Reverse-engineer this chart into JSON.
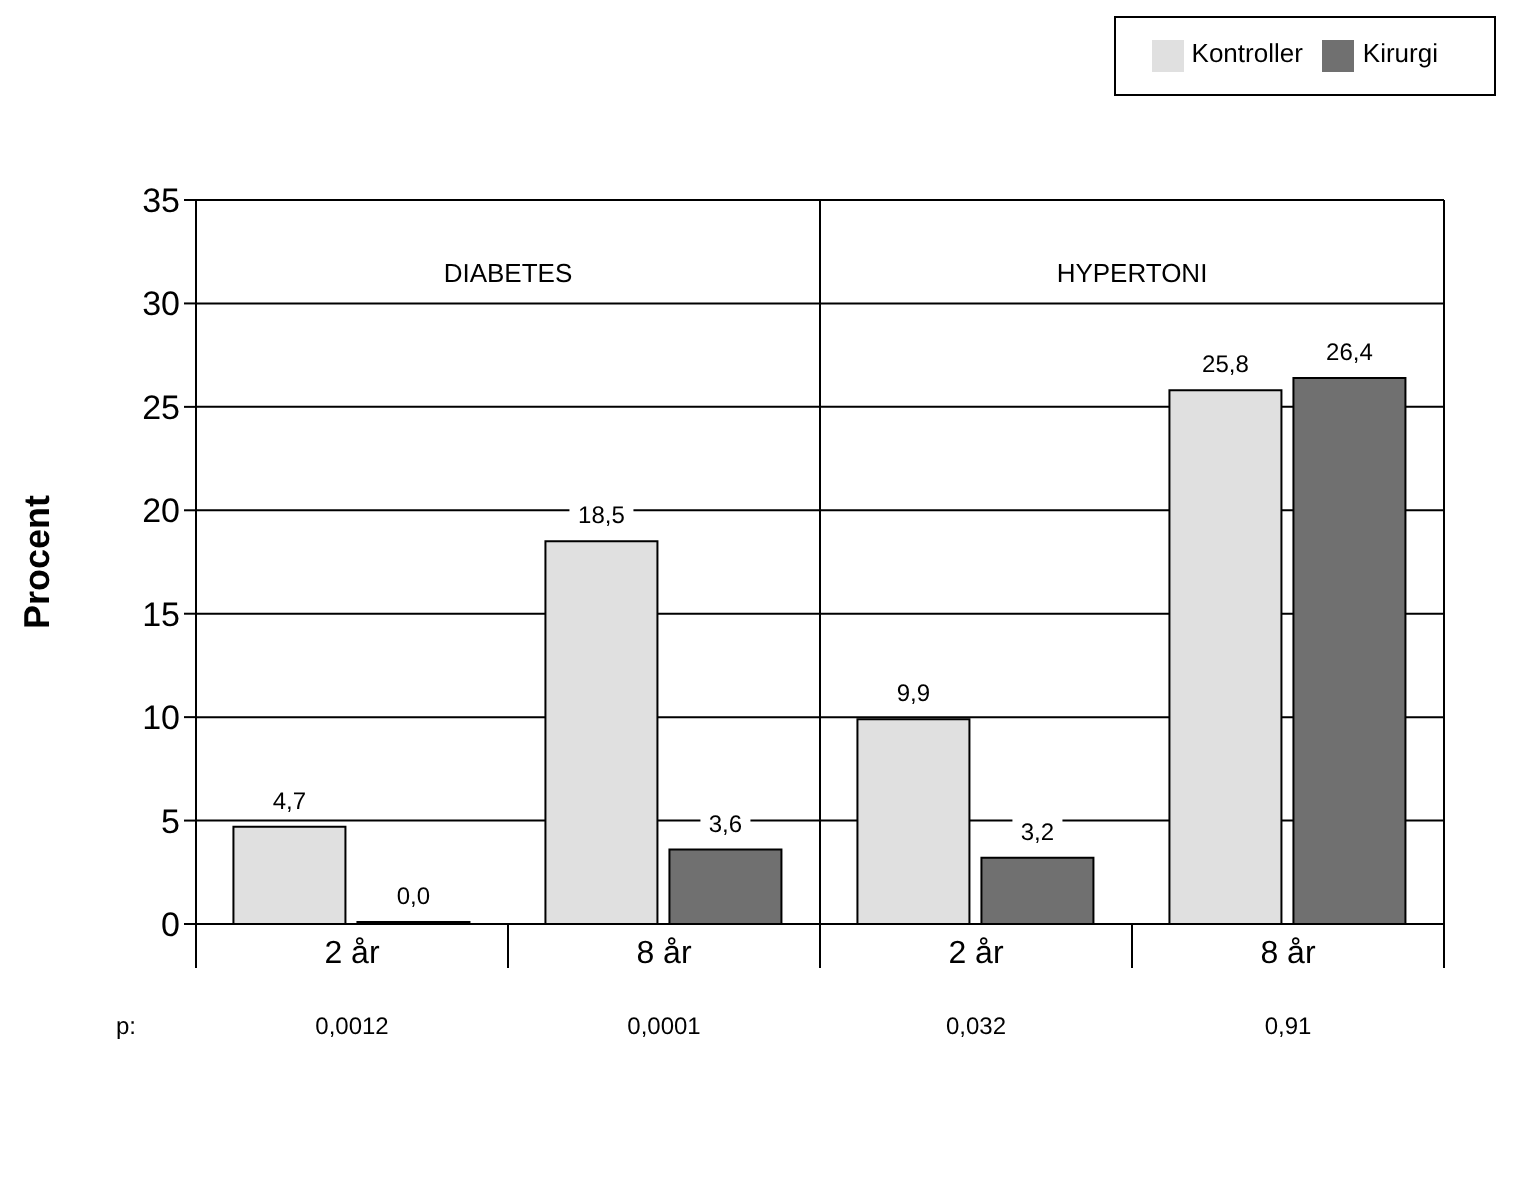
{
  "chart_data": {
    "type": "bar",
    "ylabel": "Procent",
    "categories": [
      "2 år",
      "8 år",
      "2 år",
      "8 år"
    ],
    "series": [
      {
        "name": "Kontroller",
        "color": "#e0e0e0",
        "values": [
          4.7,
          18.5,
          9.9,
          25.8
        ],
        "value_labels": [
          "4,7",
          "18,5",
          "9,9",
          "25,8"
        ]
      },
      {
        "name": "Kirurgi",
        "color": "#707070",
        "values": [
          0.0,
          3.6,
          3.2,
          26.4
        ],
        "value_labels": [
          "0,0",
          "3,6",
          "3,2",
          "26,4"
        ]
      }
    ],
    "ylim": [
      0,
      35
    ],
    "yticks": [
      0,
      5,
      10,
      15,
      20,
      25,
      30,
      35
    ],
    "grid": "y",
    "legend": "top right",
    "annotations": [
      "DIABETES",
      "HYPERTONI",
      "p:",
      "0,0012",
      "0,0001",
      "0,032",
      "0,91"
    ]
  }
}
